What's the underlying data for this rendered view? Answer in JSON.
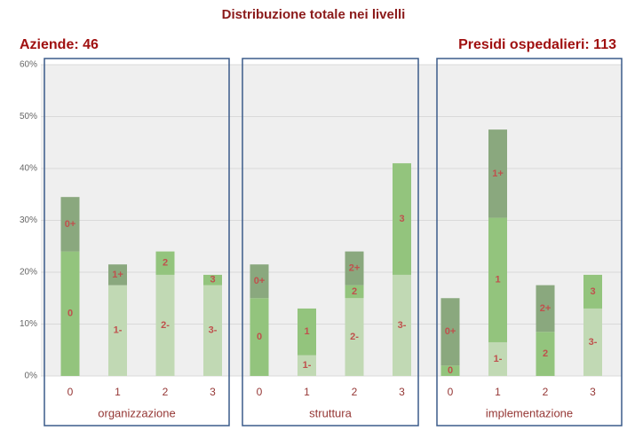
{
  "chart_data": {
    "type": "stacked_bar_panels",
    "title": "Distribuzione totale nei livelli",
    "annotations": [
      "Aziende: 46",
      "Presidi ospedalieri: 113"
    ],
    "ylim": [
      0,
      60
    ],
    "yticks": [
      {
        "value": 0,
        "label": "0%"
      },
      {
        "value": 10,
        "label": "10%"
      },
      {
        "value": 20,
        "label": "20%"
      },
      {
        "value": 30,
        "label": "30%"
      },
      {
        "value": 40,
        "label": "40%"
      },
      {
        "value": 50,
        "label": "50%"
      },
      {
        "value": 60,
        "label": "60%"
      }
    ],
    "grid": true,
    "panels": [
      {
        "label": "organizzazione",
        "categories": [
          "0",
          "1",
          "2",
          "3"
        ],
        "bars": [
          {
            "segments": [
              {
                "label": "0",
                "value": 24,
                "color": "#93c47d"
              },
              {
                "label": "0+",
                "value": 10.5,
                "color": "#8aa87e"
              }
            ]
          },
          {
            "segments": [
              {
                "label": "1-",
                "value": 17.5,
                "color": "#c1d9b4"
              },
              {
                "label": "1+",
                "value": 4,
                "color": "#8aa87e"
              }
            ]
          },
          {
            "segments": [
              {
                "label": "2-",
                "value": 19.5,
                "color": "#c1d9b4"
              },
              {
                "label": "2",
                "value": 4.5,
                "color": "#93c47d"
              }
            ]
          },
          {
            "segments": [
              {
                "label": "3-",
                "value": 17.5,
                "color": "#c1d9b4"
              },
              {
                "label": "3",
                "value": 2,
                "color": "#93c47d"
              }
            ]
          }
        ]
      },
      {
        "label": "struttura",
        "categories": [
          "0",
          "1",
          "2",
          "3"
        ],
        "bars": [
          {
            "segments": [
              {
                "label": "0",
                "value": 15,
                "color": "#93c47d"
              },
              {
                "label": "0+",
                "value": 6.5,
                "color": "#8aa87e"
              }
            ]
          },
          {
            "segments": [
              {
                "label": "1-",
                "value": 4,
                "color": "#c1d9b4"
              },
              {
                "label": "1",
                "value": 9,
                "color": "#93c47d"
              }
            ]
          },
          {
            "segments": [
              {
                "label": "2-",
                "value": 15,
                "color": "#c1d9b4"
              },
              {
                "label": "2",
                "value": 2.5,
                "color": "#93c47d"
              },
              {
                "label": "2+",
                "value": 6.5,
                "color": "#8aa87e"
              }
            ]
          },
          {
            "segments": [
              {
                "label": "3-",
                "value": 19.5,
                "color": "#c1d9b4"
              },
              {
                "label": "3",
                "value": 21.5,
                "color": "#93c47d"
              }
            ]
          }
        ]
      },
      {
        "label": "implementazione",
        "categories": [
          "0",
          "1",
          "2",
          "3"
        ],
        "bars": [
          {
            "segments": [
              {
                "label": "0",
                "value": 2,
                "color": "#93c47d"
              },
              {
                "label": "0+",
                "value": 13,
                "color": "#8aa87e"
              }
            ]
          },
          {
            "segments": [
              {
                "label": "1-",
                "value": 6.5,
                "color": "#c1d9b4"
              },
              {
                "label": "1",
                "value": 24,
                "color": "#93c47d"
              },
              {
                "label": "1+",
                "value": 17,
                "color": "#8aa87e"
              }
            ]
          },
          {
            "segments": [
              {
                "label": "2",
                "value": 8.5,
                "color": "#93c47d"
              },
              {
                "label": "2+",
                "value": 9,
                "color": "#8aa87e"
              }
            ]
          },
          {
            "segments": [
              {
                "label": "3-",
                "value": 13,
                "color": "#c1d9b4"
              },
              {
                "label": "3",
                "value": 6.5,
                "color": "#93c47d"
              }
            ]
          }
        ]
      }
    ]
  }
}
